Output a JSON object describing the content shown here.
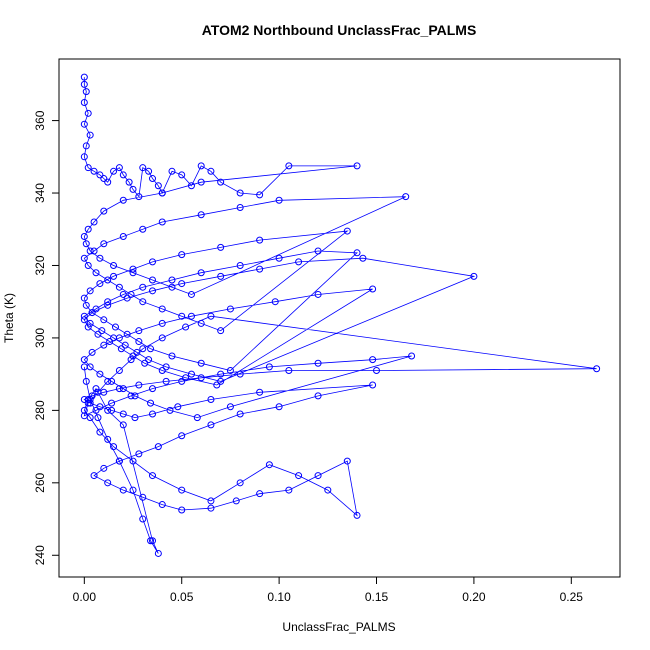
{
  "chart_data": {
    "type": "scatter",
    "title": "ATOM2 Northbound UnclassFrac_PALMS",
    "xlabel": "UnclassFrac_PALMS",
    "ylabel": "Theta (K)",
    "xlim": [
      -0.013,
      0.275
    ],
    "ylim": [
      234,
      377
    ],
    "x_ticks": [
      0.0,
      0.05,
      0.1,
      0.15,
      0.2,
      0.25
    ],
    "x_tick_labels": [
      "0.00",
      "0.05",
      "0.10",
      "0.15",
      "0.20",
      "0.25"
    ],
    "y_ticks": [
      240,
      260,
      280,
      300,
      320,
      340,
      360
    ],
    "y_tick_labels": [
      "240",
      "260",
      "280",
      "300",
      "320",
      "340",
      "360"
    ],
    "grid": false,
    "legend": "none",
    "marker": "open-circle",
    "connected": true,
    "color": "#0000ff",
    "series": [
      {
        "x": [
          0.0,
          0.0,
          0.001,
          0.0,
          0.002,
          0.0,
          0.003,
          0.001,
          0.0,
          0.002,
          0.005,
          0.008,
          0.01,
          0.012,
          0.015,
          0.018,
          0.02,
          0.023,
          0.025,
          0.028,
          0.03,
          0.033,
          0.035,
          0.038,
          0.04,
          0.045,
          0.05,
          0.055,
          0.06,
          0.065,
          0.07,
          0.08,
          0.09,
          0.105,
          0.14,
          0.06,
          0.04,
          0.02,
          0.01,
          0.005,
          0.002,
          0.0,
          0.001,
          0.003,
          0.008,
          0.015,
          0.025,
          0.035,
          0.045,
          0.055,
          0.165,
          0.1,
          0.08,
          0.06,
          0.04,
          0.03,
          0.02,
          0.01,
          0.005,
          0.0,
          0.002,
          0.006,
          0.012,
          0.018,
          0.024,
          0.03,
          0.04,
          0.05,
          0.06,
          0.07,
          0.135,
          0.09,
          0.07,
          0.05,
          0.035,
          0.025,
          0.015,
          0.008,
          0.003,
          0.0,
          0.001,
          0.004,
          0.01,
          0.016,
          0.022,
          0.028,
          0.034,
          0.045,
          0.06,
          0.075,
          0.14,
          0.12,
          0.1,
          0.08,
          0.06,
          0.045,
          0.03,
          0.02,
          0.012,
          0.006,
          0.0,
          0.003,
          0.009,
          0.015,
          0.021,
          0.027,
          0.033,
          0.042,
          0.055,
          0.07,
          0.2,
          0.143,
          0.11,
          0.09,
          0.07,
          0.05,
          0.035,
          0.022,
          0.012,
          0.004,
          0.0,
          0.002,
          0.007,
          0.013,
          0.019,
          0.025,
          0.031,
          0.04,
          0.052,
          0.068,
          0.148,
          0.12,
          0.098,
          0.075,
          0.055,
          0.04,
          0.028,
          0.018,
          0.01,
          0.004,
          0.0,
          0.003,
          0.008,
          0.014,
          0.02,
          0.026,
          0.034,
          0.044,
          0.058,
          0.075,
          0.168,
          0.148,
          0.12,
          0.095,
          0.07,
          0.05,
          0.035,
          0.024,
          0.014,
          0.006,
          0.0,
          0.002,
          0.007,
          0.012,
          0.018,
          0.024,
          0.03,
          0.04,
          0.052,
          0.065,
          0.263,
          0.15,
          0.105,
          0.08,
          0.06,
          0.042,
          0.028,
          0.018,
          0.01,
          0.004,
          0.0,
          0.003,
          0.008,
          0.014,
          0.02,
          0.026,
          0.035,
          0.048,
          0.065,
          0.09,
          0.148,
          0.12,
          0.1,
          0.08,
          0.065,
          0.05,
          0.038,
          0.028,
          0.018,
          0.01,
          0.005,
          0.012,
          0.02,
          0.03,
          0.04,
          0.05,
          0.065,
          0.078,
          0.09,
          0.105,
          0.12,
          0.135,
          0.14,
          0.125,
          0.11,
          0.095,
          0.08,
          0.065,
          0.05,
          0.035,
          0.025,
          0.015,
          0.008,
          0.003,
          0.0,
          0.002,
          0.006,
          0.012,
          0.02,
          0.035,
          0.038,
          0.034,
          0.03,
          0.025,
          0.018,
          0.012,
          0.007,
          0.003,
          0.001,
          0.0
        ],
        "y": [
          372.0,
          370.0,
          368.0,
          365.0,
          362.0,
          359.0,
          356.0,
          353.0,
          350.0,
          347.0,
          346.0,
          345.0,
          344.0,
          343.0,
          346.0,
          347.0,
          345.0,
          343.0,
          341.0,
          339.0,
          347.0,
          346.0,
          344.0,
          342.0,
          340.0,
          346.0,
          345.0,
          342.0,
          347.5,
          346.0,
          343.0,
          340.0,
          339.5,
          347.5,
          347.5,
          343.0,
          340.0,
          338.0,
          335.0,
          332.0,
          330.0,
          328.0,
          326.0,
          324.0,
          322.0,
          320.0,
          318.0,
          316.0,
          314.0,
          312.0,
          339.0,
          338.0,
          336.0,
          334.0,
          332.0,
          330.0,
          328.0,
          326.0,
          324.0,
          322.0,
          320.0,
          318.0,
          316.0,
          314.0,
          312.0,
          310.0,
          308.0,
          306.0,
          304.0,
          302.0,
          329.5,
          327.0,
          325.0,
          323.0,
          321.0,
          319.0,
          317.0,
          315.0,
          313.0,
          311.0,
          309.0,
          307.0,
          305.0,
          303.0,
          301.0,
          299.0,
          297.0,
          295.0,
          293.0,
          291.0,
          323.5,
          324.0,
          322.0,
          320.0,
          318.0,
          316.0,
          314.0,
          312.0,
          310.0,
          308.0,
          306.0,
          304.0,
          302.0,
          300.0,
          298.0,
          296.0,
          294.0,
          292.0,
          290.0,
          288.0,
          317.0,
          322.0,
          321.0,
          319.0,
          317.0,
          315.0,
          313.0,
          311.0,
          309.0,
          307.0,
          305.0,
          303.0,
          301.0,
          299.0,
          297.0,
          295.0,
          293.0,
          291.0,
          289.0,
          287.0,
          313.5,
          312.0,
          310.0,
          308.0,
          306.0,
          304.0,
          302.0,
          300.0,
          298.0,
          296.0,
          294.0,
          292.0,
          290.0,
          288.0,
          286.0,
          284.0,
          282.0,
          280.0,
          278.0,
          281.0,
          295.0,
          294.0,
          293.0,
          292.0,
          290.0,
          288.0,
          286.0,
          284.0,
          282.0,
          280.0,
          278.5,
          282.0,
          285.0,
          288.0,
          291.0,
          294.0,
          297.0,
          300.0,
          303.0,
          306.0,
          291.5,
          291.0,
          291.0,
          290.0,
          289.0,
          288.0,
          287.0,
          286.0,
          285.0,
          284.0,
          283.0,
          282.0,
          281.0,
          280.0,
          279.0,
          278.0,
          279.0,
          281.0,
          283.0,
          285.0,
          287.0,
          284.0,
          281.0,
          279.0,
          276.0,
          273.0,
          270.0,
          268.0,
          266.0,
          264.0,
          262.0,
          260.0,
          258.0,
          256.0,
          254.0,
          252.5,
          253.0,
          255.0,
          257.0,
          258.0,
          262.0,
          266.0,
          251.0,
          258.0,
          262.0,
          265.0,
          260.0,
          255.0,
          258.0,
          262.0,
          266.0,
          270.0,
          274.0,
          278.0,
          280.0,
          283.0,
          286.0,
          280.0,
          276.0,
          244.0,
          240.5,
          244.0,
          250.0,
          258.0,
          266.0,
          272.0,
          278.0,
          283.0,
          288.0,
          292.0
        ]
      }
    ]
  }
}
